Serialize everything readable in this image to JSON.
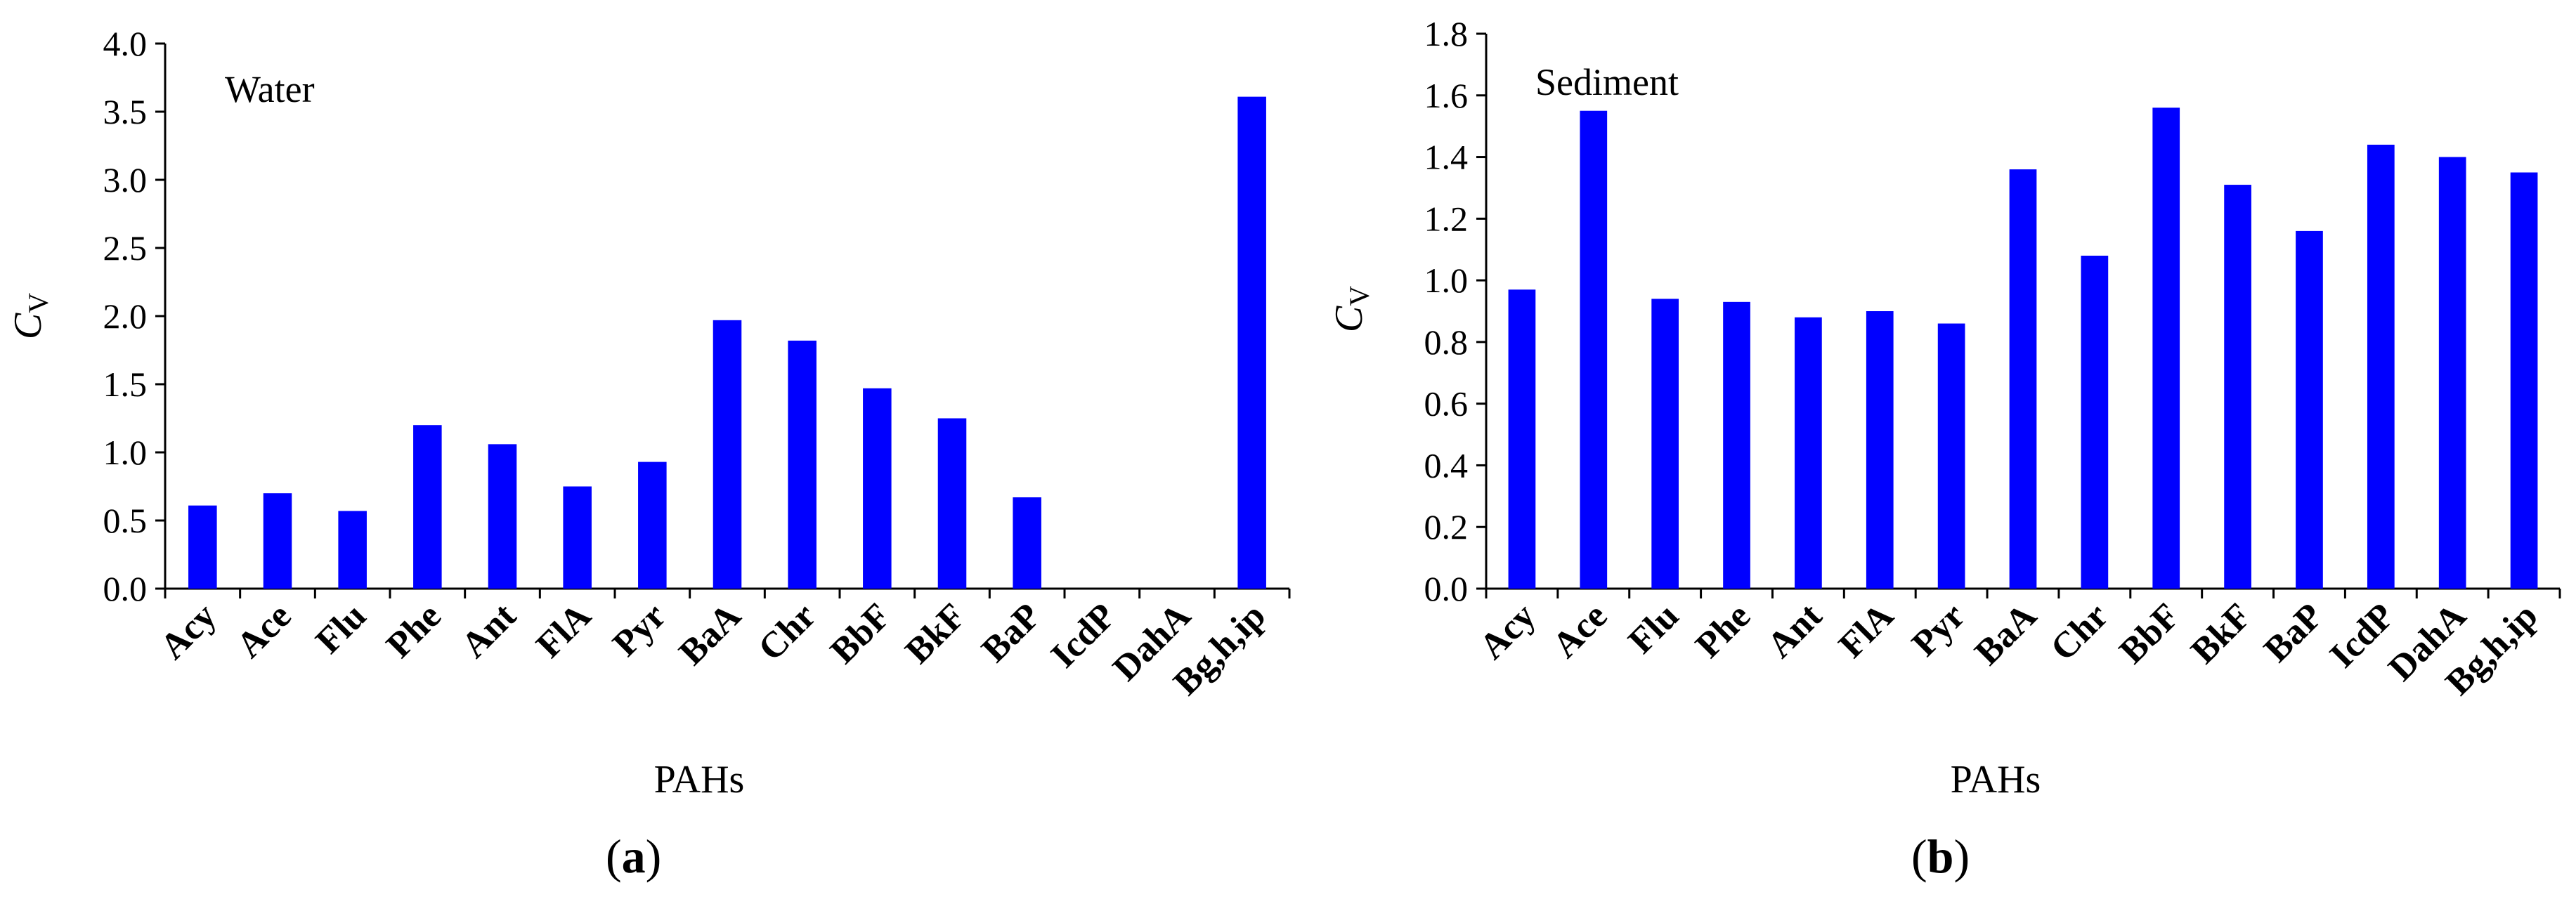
{
  "figure": {
    "bar_color": "#0000FF",
    "axis_color": "#000000",
    "text_color": "#000000"
  },
  "chart_data": [
    {
      "type": "bar",
      "panel_label": "(a)",
      "annotation": "Water",
      "xlabel": "PAHs",
      "ylabel": "C",
      "ylabel_subscript": "V",
      "ylim": [
        0,
        4.0
      ],
      "yticks": [
        "0.0",
        "0.5",
        "1.0",
        "1.5",
        "2.0",
        "2.5",
        "3.0",
        "3.5",
        "4.0"
      ],
      "categories": [
        "Acy",
        "Ace",
        "Flu",
        "Phe",
        "Ant",
        "FlA",
        "Pyr",
        "BaA",
        "Chr",
        "BbF",
        "BkF",
        "BaP",
        "IcdP",
        "DahA",
        "Bg,h,ip"
      ],
      "values": [
        0.61,
        0.7,
        0.57,
        1.2,
        1.06,
        0.75,
        0.93,
        1.97,
        1.82,
        1.47,
        1.25,
        0.67,
        0,
        0,
        3.61
      ],
      "grid": false,
      "legend": "none"
    },
    {
      "type": "bar",
      "panel_label": "(b)",
      "annotation": "Sediment",
      "xlabel": "PAHs",
      "ylabel": "C",
      "ylabel_subscript": "V",
      "ylim": [
        0,
        1.8
      ],
      "yticks": [
        "0.0",
        "0.2",
        "0.4",
        "0.6",
        "0.8",
        "1.0",
        "1.2",
        "1.4",
        "1.6",
        "1.8"
      ],
      "categories": [
        "Acy",
        "Ace",
        "Flu",
        "Phe",
        "Ant",
        "FlA",
        "Pyr",
        "BaA",
        "Chr",
        "BbF",
        "BkF",
        "BaP",
        "IcdP",
        "DahA",
        "Bg,h,ip"
      ],
      "values": [
        0.97,
        1.55,
        0.94,
        0.93,
        0.88,
        0.9,
        0.86,
        1.36,
        1.08,
        1.56,
        1.31,
        1.16,
        1.44,
        1.4,
        1.35
      ],
      "grid": false,
      "legend": "none"
    }
  ]
}
